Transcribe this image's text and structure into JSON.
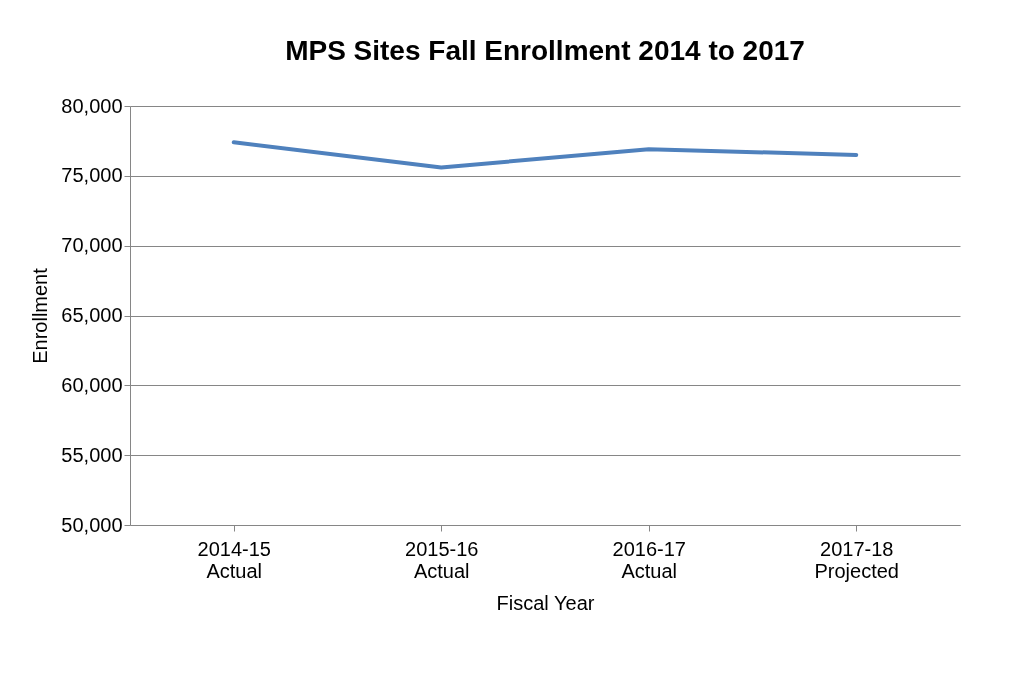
{
  "chart_data": {
    "type": "line",
    "title": "MPS Sites Fall Enrollment 2014 to 2017",
    "xlabel": "Fiscal Year",
    "ylabel": "Enrollment",
    "categories": [
      "2014-15\nActual",
      "2015-16\nActual",
      "2016-17\nActual",
      "2017-18\nProjected"
    ],
    "series": [
      {
        "color": "#4f81bd",
        "values": [
          77400,
          75600,
          76900,
          76500
        ]
      }
    ],
    "ylim": [
      50000,
      80000
    ],
    "yticks": [
      {
        "value": 50000,
        "label": "50,000"
      },
      {
        "value": 55000,
        "label": "55,000"
      },
      {
        "value": 60000,
        "label": "60,000"
      },
      {
        "value": 65000,
        "label": "65,000"
      },
      {
        "value": 70000,
        "label": "70,000"
      },
      {
        "value": 75000,
        "label": "75,000"
      },
      {
        "value": 80000,
        "label": "80,000"
      }
    ],
    "grid": "y",
    "marker": "none",
    "line_style": "solid"
  }
}
